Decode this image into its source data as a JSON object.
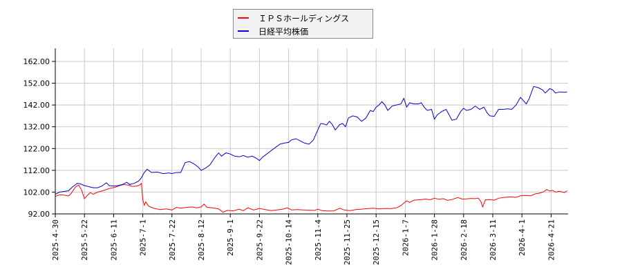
{
  "legend": {
    "items": [
      {
        "label": "ＩＰＳホールディングス",
        "color": "#ff0000"
      },
      {
        "label": "日経平均株価",
        "color": "#0000cc"
      }
    ]
  },
  "chart_data": {
    "type": "line",
    "title": "",
    "xlabel": "",
    "ylabel": "",
    "ylim": [
      92,
      168
    ],
    "grid": true,
    "legend_position": "top-center",
    "y_ticks": [
      "92.00",
      "102.00",
      "112.00",
      "122.00",
      "132.00",
      "142.00",
      "152.00",
      "162.00"
    ],
    "x_ticks": [
      "2025-4-30",
      "2025-5-22",
      "2025-6-11",
      "2025-7-1",
      "2025-7-22",
      "2025-8-12",
      "2025-9-1",
      "2025-9-22",
      "2025-10-14",
      "2025-11-4",
      "2025-11-25",
      "2025-12-15",
      "2026-1-7",
      "2026-1-28",
      "2026-2-18",
      "2026-3-11",
      "2026-4-1",
      "2026-4-21"
    ],
    "x_tick_positions": [
      0,
      1,
      2,
      3,
      4,
      5,
      6,
      7,
      8,
      9,
      10,
      11,
      12,
      13,
      14,
      15,
      16,
      17
    ],
    "x_range": [
      0,
      17.5
    ],
    "series": [
      {
        "name": "ＩＰＳホールディングス",
        "color": "#ff0000",
        "points": [
          [
            0,
            100.0
          ],
          [
            0.15,
            100.8
          ],
          [
            0.3,
            100.6
          ],
          [
            0.45,
            100.2
          ],
          [
            0.55,
            101.5
          ],
          [
            0.7,
            104.5
          ],
          [
            0.8,
            105.2
          ],
          [
            0.9,
            103.0
          ],
          [
            1.0,
            99.0
          ],
          [
            1.1,
            100.5
          ],
          [
            1.2,
            101.8
          ],
          [
            1.3,
            101.0
          ],
          [
            1.45,
            102.0
          ],
          [
            1.6,
            102.5
          ],
          [
            1.75,
            103.2
          ],
          [
            1.9,
            103.8
          ],
          [
            2.05,
            104.2
          ],
          [
            2.2,
            105.0
          ],
          [
            2.35,
            105.5
          ],
          [
            2.5,
            105.2
          ],
          [
            2.65,
            104.6
          ],
          [
            2.8,
            104.8
          ],
          [
            2.9,
            105.3
          ],
          [
            2.95,
            106.0
          ],
          [
            3.0,
            98.5
          ],
          [
            3.05,
            96.0
          ],
          [
            3.1,
            97.5
          ],
          [
            3.2,
            95.5
          ],
          [
            3.4,
            94.5
          ],
          [
            3.6,
            94.0
          ],
          [
            3.8,
            94.3
          ],
          [
            4.0,
            93.8
          ],
          [
            4.15,
            95.0
          ],
          [
            4.3,
            94.6
          ],
          [
            4.5,
            95.0
          ],
          [
            4.7,
            95.2
          ],
          [
            4.85,
            94.8
          ],
          [
            5.0,
            95.2
          ],
          [
            5.1,
            96.5
          ],
          [
            5.2,
            95.0
          ],
          [
            5.4,
            94.8
          ],
          [
            5.6,
            94.3
          ],
          [
            5.75,
            92.8
          ],
          [
            5.9,
            93.6
          ],
          [
            6.1,
            93.4
          ],
          [
            6.3,
            94.2
          ],
          [
            6.45,
            93.5
          ],
          [
            6.6,
            94.8
          ],
          [
            6.8,
            93.8
          ],
          [
            7.0,
            94.5
          ],
          [
            7.2,
            94.0
          ],
          [
            7.4,
            93.5
          ],
          [
            7.6,
            93.8
          ],
          [
            7.8,
            94.2
          ],
          [
            7.95,
            94.8
          ],
          [
            8.1,
            93.8
          ],
          [
            8.3,
            94.0
          ],
          [
            8.5,
            93.8
          ],
          [
            8.7,
            93.7
          ],
          [
            8.9,
            93.6
          ],
          [
            9.0,
            94.2
          ],
          [
            9.15,
            93.5
          ],
          [
            9.35,
            93.3
          ],
          [
            9.55,
            93.4
          ],
          [
            9.75,
            94.6
          ],
          [
            9.9,
            93.8
          ],
          [
            10.1,
            93.5
          ],
          [
            10.3,
            94.0
          ],
          [
            10.5,
            94.2
          ],
          [
            10.7,
            94.4
          ],
          [
            10.9,
            94.6
          ],
          [
            11.1,
            94.3
          ],
          [
            11.3,
            94.5
          ],
          [
            11.5,
            94.4
          ],
          [
            11.7,
            94.8
          ],
          [
            11.85,
            95.8
          ],
          [
            11.95,
            97.0
          ],
          [
            12.05,
            98.0
          ],
          [
            12.15,
            97.3
          ],
          [
            12.3,
            98.3
          ],
          [
            12.5,
            98.5
          ],
          [
            12.7,
            98.8
          ],
          [
            12.85,
            98.5
          ],
          [
            13.0,
            99.2
          ],
          [
            13.15,
            98.7
          ],
          [
            13.3,
            99.0
          ],
          [
            13.45,
            98.2
          ],
          [
            13.6,
            98.6
          ],
          [
            13.8,
            99.5
          ],
          [
            13.95,
            98.8
          ],
          [
            14.1,
            98.9
          ],
          [
            14.25,
            99.1
          ],
          [
            14.4,
            99.0
          ],
          [
            14.5,
            99.3
          ],
          [
            14.6,
            97.5
          ],
          [
            14.65,
            95.2
          ],
          [
            14.75,
            98.5
          ],
          [
            14.9,
            98.6
          ],
          [
            15.05,
            98.3
          ],
          [
            15.2,
            99.2
          ],
          [
            15.4,
            99.6
          ],
          [
            15.6,
            99.8
          ],
          [
            15.8,
            99.6
          ],
          [
            15.95,
            100.3
          ],
          [
            16.1,
            100.5
          ],
          [
            16.3,
            100.3
          ],
          [
            16.45,
            101.2
          ],
          [
            16.6,
            101.5
          ],
          [
            16.75,
            102.2
          ],
          [
            16.85,
            103.2
          ],
          [
            16.95,
            102.5
          ],
          [
            17.05,
            102.8
          ],
          [
            17.15,
            102.0
          ],
          [
            17.3,
            102.4
          ],
          [
            17.45,
            101.8
          ],
          [
            17.55,
            102.6
          ]
        ]
      },
      {
        "name": "日経平均株価",
        "color": "#0000cc",
        "points": [
          [
            0,
            101.0
          ],
          [
            0.15,
            102.0
          ],
          [
            0.3,
            102.3
          ],
          [
            0.45,
            102.6
          ],
          [
            0.6,
            104.5
          ],
          [
            0.75,
            106.0
          ],
          [
            0.85,
            105.8
          ],
          [
            1.0,
            105.0
          ],
          [
            1.15,
            104.5
          ],
          [
            1.3,
            104.0
          ],
          [
            1.45,
            104.0
          ],
          [
            1.6,
            104.8
          ],
          [
            1.75,
            106.3
          ],
          [
            1.85,
            105.0
          ],
          [
            2.0,
            104.8
          ],
          [
            2.15,
            105.0
          ],
          [
            2.3,
            105.5
          ],
          [
            2.45,
            106.5
          ],
          [
            2.55,
            105.5
          ],
          [
            2.7,
            106.0
          ],
          [
            2.85,
            107.0
          ],
          [
            2.95,
            108.5
          ],
          [
            3.05,
            111.0
          ],
          [
            3.15,
            112.5
          ],
          [
            3.3,
            111.0
          ],
          [
            3.5,
            111.2
          ],
          [
            3.7,
            110.5
          ],
          [
            3.9,
            110.8
          ],
          [
            4.0,
            110.5
          ],
          [
            4.15,
            111.0
          ],
          [
            4.3,
            111.0
          ],
          [
            4.45,
            115.5
          ],
          [
            4.6,
            116.0
          ],
          [
            4.75,
            115.0
          ],
          [
            4.9,
            113.5
          ],
          [
            5.0,
            112.0
          ],
          [
            5.15,
            113.0
          ],
          [
            5.3,
            114.5
          ],
          [
            5.45,
            117.5
          ],
          [
            5.6,
            120.0
          ],
          [
            5.7,
            118.5
          ],
          [
            5.85,
            120.0
          ],
          [
            6.0,
            119.5
          ],
          [
            6.15,
            118.5
          ],
          [
            6.3,
            118.2
          ],
          [
            6.45,
            118.8
          ],
          [
            6.6,
            118.0
          ],
          [
            6.75,
            118.5
          ],
          [
            6.9,
            117.5
          ],
          [
            7.0,
            116.5
          ],
          [
            7.1,
            118.0
          ],
          [
            7.25,
            119.5
          ],
          [
            7.4,
            121.0
          ],
          [
            7.55,
            122.5
          ],
          [
            7.7,
            124.0
          ],
          [
            7.85,
            124.5
          ],
          [
            8.0,
            124.8
          ],
          [
            8.1,
            126.0
          ],
          [
            8.25,
            126.5
          ],
          [
            8.4,
            125.5
          ],
          [
            8.55,
            124.5
          ],
          [
            8.7,
            124.0
          ],
          [
            8.85,
            126.0
          ],
          [
            9.0,
            130.5
          ],
          [
            9.1,
            133.5
          ],
          [
            9.2,
            133.3
          ],
          [
            9.3,
            132.8
          ],
          [
            9.4,
            134.5
          ],
          [
            9.5,
            133.0
          ],
          [
            9.6,
            130.5
          ],
          [
            9.75,
            133.0
          ],
          [
            9.85,
            133.5
          ],
          [
            9.95,
            132.0
          ],
          [
            10.05,
            136.0
          ],
          [
            10.2,
            137.0
          ],
          [
            10.35,
            136.5
          ],
          [
            10.5,
            134.5
          ],
          [
            10.65,
            136.0
          ],
          [
            10.8,
            139.5
          ],
          [
            10.9,
            139.0
          ],
          [
            11.0,
            141.0
          ],
          [
            11.1,
            142.0
          ],
          [
            11.2,
            143.5
          ],
          [
            11.3,
            142.0
          ],
          [
            11.4,
            139.5
          ],
          [
            11.55,
            141.5
          ],
          [
            11.7,
            142.0
          ],
          [
            11.85,
            142.5
          ],
          [
            11.95,
            145.0
          ],
          [
            12.05,
            141.0
          ],
          [
            12.15,
            143.0
          ],
          [
            12.3,
            142.5
          ],
          [
            12.45,
            142.5
          ],
          [
            12.55,
            143.0
          ],
          [
            12.65,
            141.0
          ],
          [
            12.75,
            139.5
          ],
          [
            12.9,
            140.0
          ],
          [
            13.0,
            135.5
          ],
          [
            13.1,
            137.5
          ],
          [
            13.25,
            139.0
          ],
          [
            13.4,
            140.0
          ],
          [
            13.5,
            137.5
          ],
          [
            13.6,
            135.0
          ],
          [
            13.75,
            135.5
          ],
          [
            13.9,
            139.0
          ],
          [
            14.0,
            140.5
          ],
          [
            14.1,
            139.5
          ],
          [
            14.25,
            140.0
          ],
          [
            14.4,
            141.5
          ],
          [
            14.55,
            140.0
          ],
          [
            14.7,
            141.0
          ],
          [
            14.8,
            138.5
          ],
          [
            14.9,
            137.0
          ],
          [
            15.05,
            136.8
          ],
          [
            15.2,
            140.0
          ],
          [
            15.35,
            140.0
          ],
          [
            15.5,
            140.2
          ],
          [
            15.65,
            140.0
          ],
          [
            15.8,
            142.0
          ],
          [
            15.95,
            145.5
          ],
          [
            16.05,
            144.0
          ],
          [
            16.15,
            142.5
          ],
          [
            16.25,
            145.0
          ],
          [
            16.4,
            150.5
          ],
          [
            16.55,
            150.0
          ],
          [
            16.7,
            149.0
          ],
          [
            16.8,
            147.5
          ],
          [
            16.95,
            149.5
          ],
          [
            17.05,
            149.0
          ],
          [
            17.15,
            147.5
          ],
          [
            17.3,
            148.0
          ],
          [
            17.45,
            147.8
          ],
          [
            17.55,
            148.0
          ]
        ]
      }
    ]
  }
}
